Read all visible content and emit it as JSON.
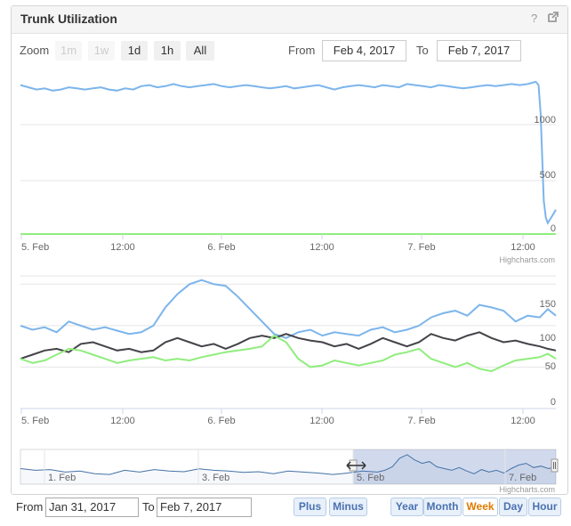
{
  "panel": {
    "title": "Trunk Utilization",
    "help_icon": "?",
    "popout_icon": "external-link-icon"
  },
  "zoom": {
    "label": "Zoom",
    "buttons": [
      {
        "label": "1m",
        "enabled": false
      },
      {
        "label": "1w",
        "enabled": false
      },
      {
        "label": "1d",
        "enabled": true
      },
      {
        "label": "1h",
        "enabled": true
      },
      {
        "label": "All",
        "enabled": true
      }
    ]
  },
  "range": {
    "from_label": "From",
    "from_value": "Feb 4, 2017",
    "to_label": "To",
    "to_value": "Feb 7, 2017"
  },
  "credits": "Highcharts.com",
  "chart_data": [
    {
      "type": "line",
      "x_ticks": [
        "5. Feb",
        "12:00",
        "6. Feb",
        "12:00",
        "7. Feb",
        "12:00"
      ],
      "y_ticks": [
        "0",
        "500",
        "1000"
      ],
      "ylim": [
        0,
        1500
      ],
      "series": [
        {
          "color": "#7cb5ec",
          "x": [
            0,
            2,
            4,
            6,
            8,
            10,
            12,
            14,
            16,
            18,
            20,
            22,
            24,
            26,
            28,
            30,
            32,
            34,
            36,
            38,
            40,
            42,
            44,
            46,
            48,
            50,
            52,
            54,
            56,
            58,
            60,
            62,
            64,
            66,
            68,
            70,
            72,
            74,
            76,
            78,
            80,
            82,
            84,
            86,
            88,
            90,
            92,
            94,
            96,
            98,
            100,
            102,
            104,
            106,
            108,
            110,
            112,
            114,
            116,
            118,
            120,
            122,
            124,
            126,
            128,
            128.7,
            129.2,
            129.6,
            130,
            130.5,
            131,
            131.5,
            132,
            133
          ],
          "values": [
            1350,
            1330,
            1310,
            1320,
            1300,
            1310,
            1330,
            1320,
            1310,
            1320,
            1330,
            1310,
            1300,
            1320,
            1310,
            1340,
            1350,
            1330,
            1340,
            1360,
            1340,
            1330,
            1340,
            1350,
            1360,
            1340,
            1330,
            1340,
            1350,
            1340,
            1330,
            1320,
            1330,
            1340,
            1320,
            1330,
            1340,
            1350,
            1330,
            1310,
            1330,
            1340,
            1350,
            1340,
            1330,
            1350,
            1340,
            1330,
            1360,
            1350,
            1340,
            1330,
            1350,
            1340,
            1330,
            1320,
            1330,
            1340,
            1350,
            1340,
            1350,
            1360,
            1350,
            1360,
            1380,
            1350,
            1100,
            700,
            300,
            150,
            100,
            130,
            160,
            220
          ]
        },
        {
          "color": "#90ed7d",
          "x": [
            0,
            133
          ],
          "values": [
            0,
            0
          ]
        }
      ]
    },
    {
      "type": "line",
      "x_ticks": [
        "5. Feb",
        "12:00",
        "6. Feb",
        "12:00",
        "7. Feb",
        "12:00"
      ],
      "y_ticks": [
        "0",
        "50",
        "100",
        "150"
      ],
      "ylim": [
        0,
        160
      ],
      "series": [
        {
          "color": "#7cb5ec",
          "x": [
            0,
            3,
            6,
            9,
            12,
            15,
            18,
            21,
            24,
            27,
            30,
            33,
            36,
            39,
            42,
            45,
            48,
            51,
            54,
            57,
            60,
            63,
            66,
            69,
            72,
            75,
            78,
            81,
            84,
            87,
            90,
            93,
            96,
            99,
            102,
            105,
            108,
            111,
            114,
            117,
            120,
            123,
            126,
            129,
            131,
            133
          ],
          "values": [
            100,
            95,
            98,
            92,
            105,
            100,
            95,
            98,
            94,
            90,
            92,
            100,
            122,
            138,
            150,
            155,
            150,
            148,
            135,
            120,
            105,
            90,
            85,
            92,
            95,
            88,
            92,
            90,
            88,
            95,
            98,
            92,
            95,
            100,
            110,
            115,
            118,
            112,
            125,
            122,
            118,
            105,
            112,
            110,
            120,
            112
          ]
        },
        {
          "color": "#434348",
          "x": [
            0,
            3,
            6,
            9,
            12,
            15,
            18,
            21,
            24,
            27,
            30,
            33,
            36,
            39,
            42,
            45,
            48,
            51,
            54,
            57,
            60,
            63,
            66,
            69,
            72,
            75,
            78,
            81,
            84,
            87,
            90,
            93,
            96,
            99,
            102,
            105,
            108,
            111,
            114,
            117,
            120,
            123,
            126,
            129,
            131,
            133
          ],
          "values": [
            60,
            65,
            70,
            72,
            68,
            78,
            80,
            75,
            70,
            72,
            68,
            70,
            80,
            85,
            80,
            75,
            78,
            72,
            78,
            85,
            88,
            85,
            90,
            85,
            82,
            80,
            75,
            78,
            72,
            78,
            85,
            80,
            75,
            80,
            90,
            85,
            82,
            88,
            92,
            85,
            80,
            82,
            78,
            75,
            72,
            70
          ]
        },
        {
          "color": "#90ed7d",
          "x": [
            0,
            3,
            6,
            9,
            12,
            15,
            18,
            21,
            24,
            27,
            30,
            33,
            36,
            39,
            42,
            45,
            48,
            51,
            54,
            57,
            60,
            63,
            66,
            69,
            72,
            75,
            78,
            81,
            84,
            87,
            90,
            93,
            96,
            99,
            102,
            105,
            108,
            111,
            114,
            117,
            120,
            123,
            126,
            129,
            131,
            133
          ],
          "values": [
            60,
            55,
            58,
            65,
            72,
            70,
            65,
            60,
            55,
            58,
            60,
            62,
            58,
            60,
            58,
            62,
            65,
            68,
            70,
            72,
            75,
            88,
            80,
            60,
            50,
            52,
            58,
            55,
            52,
            55,
            58,
            65,
            68,
            72,
            60,
            55,
            50,
            55,
            48,
            45,
            52,
            58,
            60,
            62,
            66,
            60
          ]
        }
      ]
    },
    {
      "type": "area",
      "x_ticks": [
        "1. Feb",
        "3. Feb",
        "5. Feb",
        "7. Feb"
      ],
      "series": [
        {
          "color": "#4572a7",
          "x": [
            0,
            4,
            8,
            12,
            16,
            20,
            24,
            28,
            32,
            36,
            40,
            44,
            48,
            52,
            56,
            60,
            64,
            68,
            72,
            76,
            80,
            84,
            88,
            92,
            96,
            98,
            100,
            102,
            104,
            106,
            108,
            110,
            112,
            114,
            116,
            118,
            120,
            122,
            124,
            126,
            128,
            130,
            132,
            134,
            136,
            138,
            140,
            142,
            144
          ],
          "values": [
            45,
            40,
            42,
            35,
            38,
            30,
            28,
            40,
            35,
            42,
            38,
            36,
            44,
            40,
            38,
            34,
            36,
            30,
            38,
            35,
            32,
            28,
            32,
            38,
            35,
            40,
            50,
            75,
            85,
            70,
            60,
            65,
            50,
            45,
            40,
            48,
            38,
            30,
            42,
            35,
            40,
            32,
            45,
            55,
            60,
            48,
            52,
            45,
            50
          ]
        }
      ],
      "navigator_window": [
        "Feb 4, 2017",
        "Feb 7, 2017"
      ]
    }
  ],
  "footer": {
    "from_label": "From",
    "from_value": "Jan 31, 2017",
    "to_label": "To",
    "to_value": "Feb 7, 2017",
    "plus_label": "Plus",
    "minus_label": "Minus",
    "range_buttons": [
      {
        "label": "Year",
        "active": false
      },
      {
        "label": "Month",
        "active": false
      },
      {
        "label": "Week",
        "active": true
      },
      {
        "label": "Day",
        "active": false
      },
      {
        "label": "Hour",
        "active": false
      }
    ]
  }
}
